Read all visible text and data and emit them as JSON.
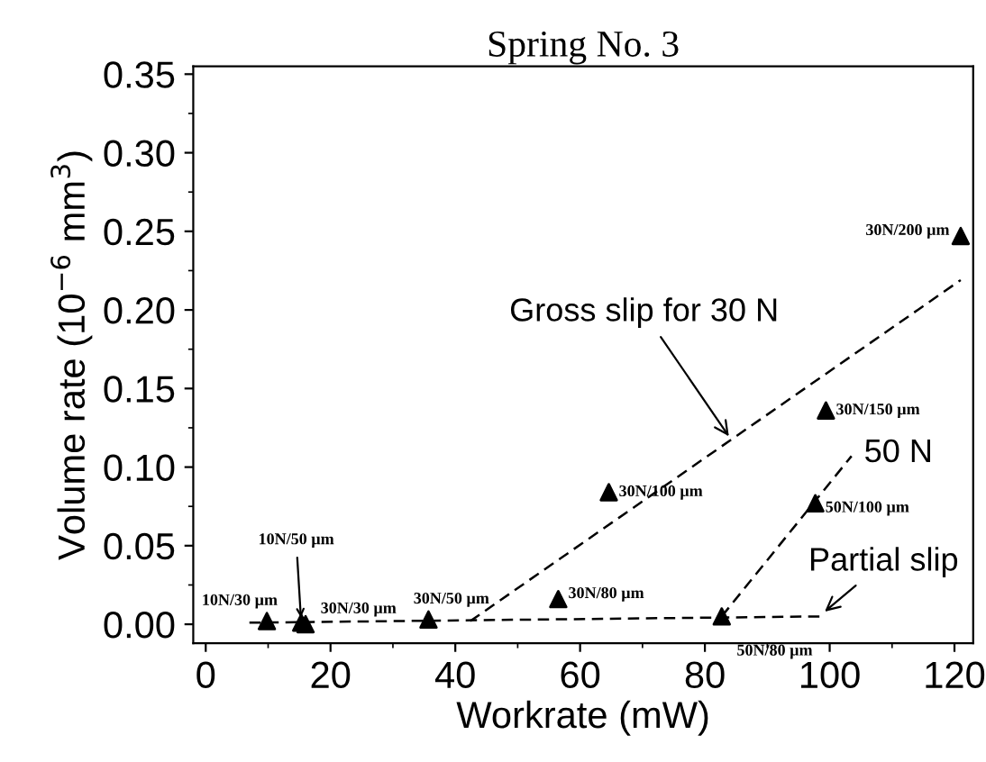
{
  "chart_data": {
    "type": "scatter",
    "title": "Spring No. 3",
    "xlabel": "Workrate (mW)",
    "ylabel": "Volume rate (10$^{−6}$ mm$^{3}$)",
    "x": [
      9.8,
      15.3,
      16,
      35.7,
      56.5,
      64.6,
      99.4,
      97.7,
      82.7,
      121
    ],
    "series": [
      {
        "color": "#000000",
        "marker": "triangle",
        "values": [
          0.002,
          0.001,
          0.0,
          0.003,
          0.016,
          0.084,
          0.136,
          0.077,
          0.005,
          0.247
        ]
      },
      {
        "type": "line",
        "color": "#000000",
        "line_style": "dashed",
        "marker": "none",
        "x": [
          7,
          98.6
        ],
        "values": [
          0.001,
          0.005
        ]
      },
      {
        "type": "line",
        "color": "#000000",
        "line_style": "dashed",
        "marker": "none",
        "x": [
          42.4,
          121
        ],
        "values": [
          0.002,
          0.219
        ]
      },
      {
        "type": "line",
        "color": "#000000",
        "line_style": "dashed",
        "marker": "none",
        "x": [
          82.7,
          103.5
        ],
        "values": [
          0.005,
          0.107
        ]
      }
    ],
    "annotations": [
      {
        "text": "10N/30 µm",
        "x": 9.8,
        "y": 0.002
      },
      {
        "text": "10N/50 µm",
        "x": 15.3,
        "y": 0.001
      },
      {
        "text": "30N/30 µm",
        "x": 16,
        "y": 0.0
      },
      {
        "text": "30N/50 µm",
        "x": 35.7,
        "y": 0.003
      },
      {
        "text": "30N/80 µm",
        "x": 56.5,
        "y": 0.016
      },
      {
        "text": "30N/100 µm",
        "x": 64.6,
        "y": 0.084
      },
      {
        "text": "30N/150 µm",
        "x": 99.4,
        "y": 0.136
      },
      {
        "text": "50N/100 µm",
        "x": 97.7,
        "y": 0.077
      },
      {
        "text": "50N/80 µm",
        "x": 82.7,
        "y": 0.005
      },
      {
        "text": "30N/200 µm",
        "x": 121,
        "y": 0.247
      },
      {
        "text": "Gross slip for 30 N",
        "x": 84.3,
        "y": 0.117
      },
      {
        "text": "50 N",
        "x": 103.5,
        "y": 0.107
      },
      {
        "text": "Partial slip",
        "x": 98.6,
        "y": 0.006
      }
    ],
    "xlim": [
      -2,
      123
    ],
    "ylim": [
      -0.012,
      0.355
    ],
    "xticks": [
      0,
      20,
      40,
      60,
      80,
      100,
      120
    ],
    "yticks": [
      {
        "value": 0,
        "label": "0.00"
      },
      {
        "value": 0.05,
        "label": "0.05"
      },
      {
        "value": 0.1,
        "label": "0.10"
      },
      {
        "value": 0.15,
        "label": "0.15"
      },
      {
        "value": 0.2,
        "label": "0.20"
      },
      {
        "value": 0.25,
        "label": "0.25"
      },
      {
        "value": 0.3,
        "label": "0.30"
      },
      {
        "value": 0.35,
        "label": "0.35"
      }
    ],
    "grid": false,
    "legend": false
  }
}
